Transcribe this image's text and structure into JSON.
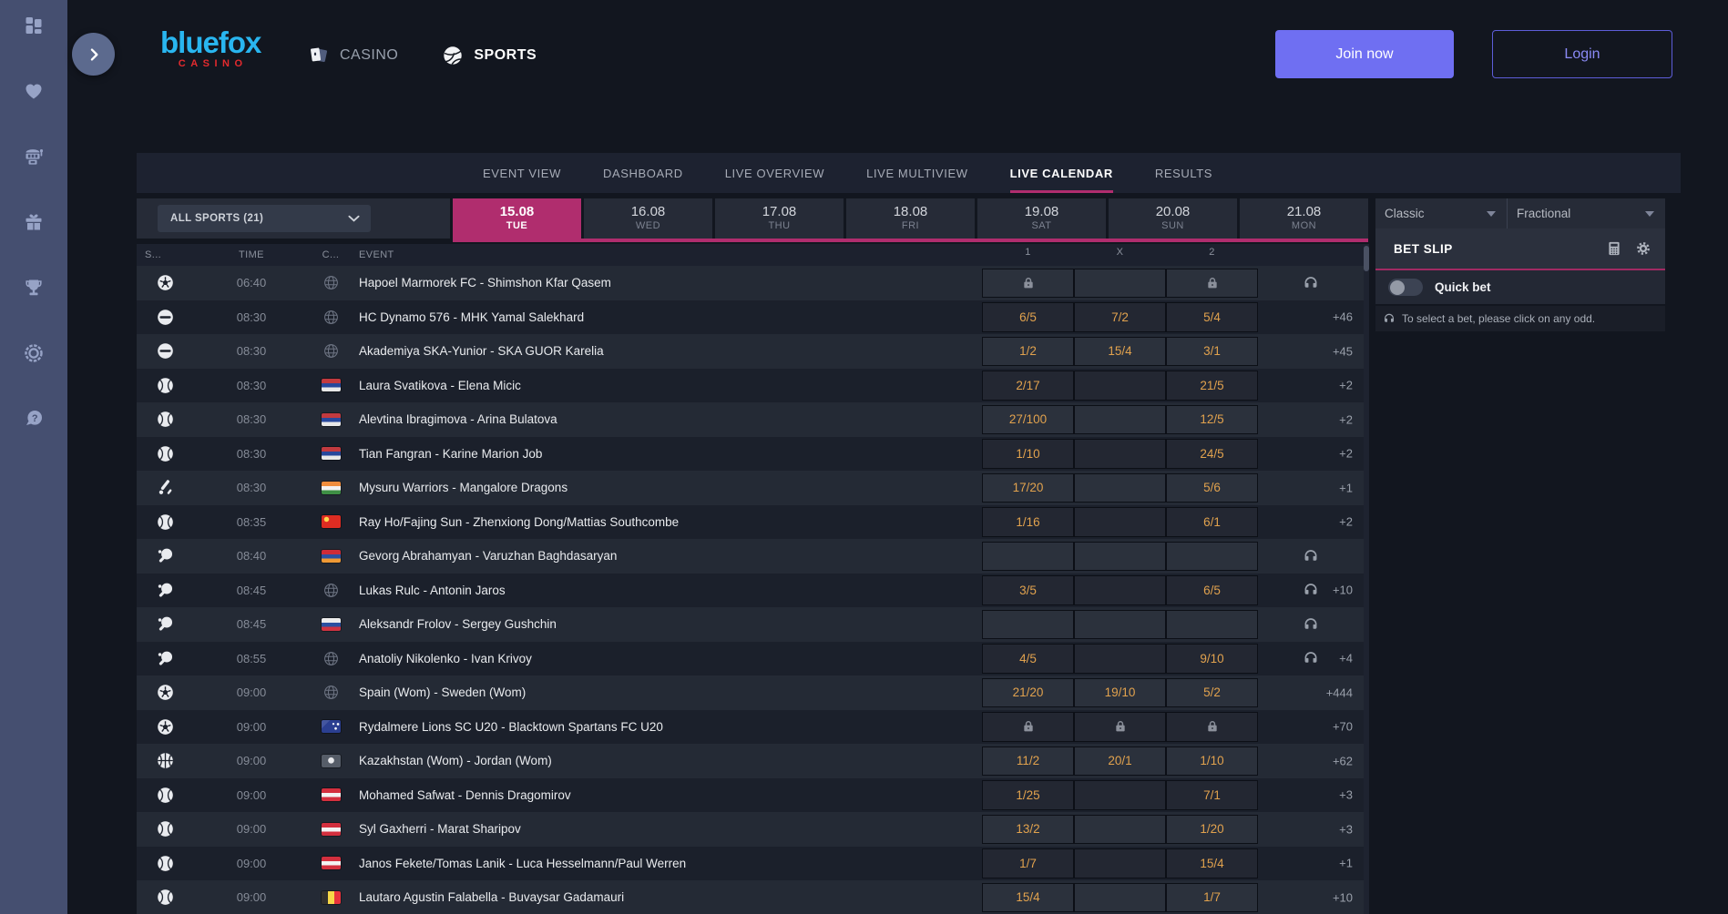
{
  "colors": {
    "accent_pink": "#b02d6e",
    "accent_purple": "#6f6ff2",
    "odds_gold": "#e1a24e",
    "brand_cyan": "#29b6f0",
    "brand_red": "#e32a2e"
  },
  "sidebar": {
    "items": [
      {
        "icon": "dashboard-grid"
      },
      {
        "icon": "heart"
      },
      {
        "icon": "slot-machine"
      },
      {
        "icon": "gift"
      },
      {
        "icon": "trophy"
      },
      {
        "icon": "roulette"
      },
      {
        "icon": "help-chat"
      }
    ]
  },
  "header": {
    "logo_brand": "bluefox",
    "logo_sub": "CASINO",
    "nav": [
      {
        "label": "CASINO",
        "icon": "cards",
        "active": false
      },
      {
        "label": "SPORTS",
        "icon": "sports-ball",
        "active": true
      }
    ],
    "join_button": "Join now",
    "login_button": "Login"
  },
  "view_tabs": [
    {
      "label": "EVENT VIEW",
      "active": false
    },
    {
      "label": "DASHBOARD",
      "active": false
    },
    {
      "label": "LIVE OVERVIEW",
      "active": false
    },
    {
      "label": "LIVE MULTIVIEW",
      "active": false
    },
    {
      "label": "LIVE CALENDAR",
      "active": true
    },
    {
      "label": "RESULTS",
      "active": false
    }
  ],
  "filters": {
    "sports_dropdown": "ALL SPORTS (21)",
    "dates": [
      {
        "date": "15.08",
        "day": "TUE",
        "active": true
      },
      {
        "date": "16.08",
        "day": "WED",
        "active": false
      },
      {
        "date": "17.08",
        "day": "THU",
        "active": false
      },
      {
        "date": "18.08",
        "day": "FRI",
        "active": false
      },
      {
        "date": "19.08",
        "day": "SAT",
        "active": false
      },
      {
        "date": "20.08",
        "day": "SUN",
        "active": false
      },
      {
        "date": "21.08",
        "day": "MON",
        "active": false
      }
    ]
  },
  "table": {
    "headers": {
      "sport": "S...",
      "time": "TIME",
      "country": "C...",
      "event": "EVENT",
      "one": "1",
      "x": "X",
      "two": "2"
    },
    "rows": [
      {
        "sport": "soccer",
        "time": "06:40",
        "country": "international",
        "event": "Hapoel Marmorek FC - Shimshon Kfar Qasem",
        "odds": [
          "lock",
          "",
          "lock"
        ],
        "live": true,
        "more": ""
      },
      {
        "sport": "ice-hockey",
        "time": "08:30",
        "country": "international",
        "event": "HC Dynamo 576 - MHK Yamal Salekhard",
        "odds": [
          "6/5",
          "7/2",
          "5/4"
        ],
        "live": false,
        "more": "+46"
      },
      {
        "sport": "ice-hockey",
        "time": "08:30",
        "country": "international",
        "event": "Akademiya SKA-Yunior - SKA GUOR Karelia",
        "odds": [
          "1/2",
          "15/4",
          "3/1"
        ],
        "live": false,
        "more": "+45"
      },
      {
        "sport": "tennis",
        "time": "08:30",
        "country": "serbia",
        "event": "Laura Svatikova - Elena Micic",
        "odds": [
          "2/17",
          "",
          "21/5"
        ],
        "live": false,
        "more": "+2"
      },
      {
        "sport": "tennis",
        "time": "08:30",
        "country": "serbia",
        "event": "Alevtina Ibragimova - Arina Bulatova",
        "odds": [
          "27/100",
          "",
          "12/5"
        ],
        "live": false,
        "more": "+2"
      },
      {
        "sport": "tennis",
        "time": "08:30",
        "country": "serbia",
        "event": "Tian Fangran - Karine Marion Job",
        "odds": [
          "1/10",
          "",
          "24/5"
        ],
        "live": false,
        "more": "+2"
      },
      {
        "sport": "cricket",
        "time": "08:30",
        "country": "india",
        "event": "Mysuru Warriors - Mangalore Dragons",
        "odds": [
          "17/20",
          "",
          "5/6"
        ],
        "live": false,
        "more": "+1"
      },
      {
        "sport": "tennis",
        "time": "08:35",
        "country": "china",
        "event": "Ray Ho/Fajing Sun - Zhenxiong Dong/Mattias Southcombe",
        "odds": [
          "1/16",
          "",
          "6/1"
        ],
        "live": false,
        "more": "+2"
      },
      {
        "sport": "table-tennis",
        "time": "08:40",
        "country": "armenia",
        "event": "Gevorg Abrahamyan - Varuzhan Baghdasaryan",
        "odds": [
          "",
          "",
          ""
        ],
        "live": true,
        "more": ""
      },
      {
        "sport": "table-tennis",
        "time": "08:45",
        "country": "international",
        "event": "Lukas Rulc - Antonin Jaros",
        "odds": [
          "3/5",
          "",
          "6/5"
        ],
        "live": true,
        "more": "+10"
      },
      {
        "sport": "table-tennis",
        "time": "08:45",
        "country": "russia",
        "event": "Aleksandr Frolov - Sergey Gushchin",
        "odds": [
          "",
          "",
          ""
        ],
        "live": true,
        "more": ""
      },
      {
        "sport": "table-tennis",
        "time": "08:55",
        "country": "international",
        "event": "Anatoliy Nikolenko - Ivan Krivoy",
        "odds": [
          "4/5",
          "",
          "9/10"
        ],
        "live": true,
        "more": "+4"
      },
      {
        "sport": "soccer",
        "time": "09:00",
        "country": "international",
        "event": "Spain (Wom) - Sweden (Wom)",
        "odds": [
          "21/20",
          "19/10",
          "5/2"
        ],
        "live": false,
        "more": "+444"
      },
      {
        "sport": "soccer",
        "time": "09:00",
        "country": "australia",
        "event": "Rydalmere Lions SC U20 - Blacktown Spartans FC U20",
        "odds": [
          "lock",
          "lock",
          "lock"
        ],
        "live": false,
        "more": "+70"
      },
      {
        "sport": "basketball",
        "time": "09:00",
        "country": "kazakhstan",
        "event": "Kazakhstan (Wom) - Jordan (Wom)",
        "odds": [
          "11/2",
          "20/1",
          "1/10"
        ],
        "live": false,
        "more": "+62"
      },
      {
        "sport": "tennis",
        "time": "09:00",
        "country": "austria",
        "event": "Mohamed Safwat - Dennis Dragomirov",
        "odds": [
          "1/25",
          "",
          "7/1"
        ],
        "live": false,
        "more": "+3"
      },
      {
        "sport": "tennis",
        "time": "09:00",
        "country": "austria",
        "event": "Syl Gaxherri - Marat Sharipov",
        "odds": [
          "13/2",
          "",
          "1/20"
        ],
        "live": false,
        "more": "+3"
      },
      {
        "sport": "tennis",
        "time": "09:00",
        "country": "austria",
        "event": "Janos Fekete/Tomas Lanik - Luca Hesselmann/Paul Werren",
        "odds": [
          "1/7",
          "",
          "15/4"
        ],
        "live": false,
        "more": "+1"
      },
      {
        "sport": "tennis",
        "time": "09:00",
        "country": "belgium",
        "event": "Lautaro Agustin Falabella - Buvaysar Gadamauri",
        "odds": [
          "15/4",
          "",
          "1/7"
        ],
        "live": false,
        "more": "+10"
      }
    ]
  },
  "betslip": {
    "view_select": "Classic",
    "odds_format_select": "Fractional",
    "title": "BET SLIP",
    "quick_bet_label": "Quick bet",
    "hint": "To select a bet, please click on any odd."
  }
}
